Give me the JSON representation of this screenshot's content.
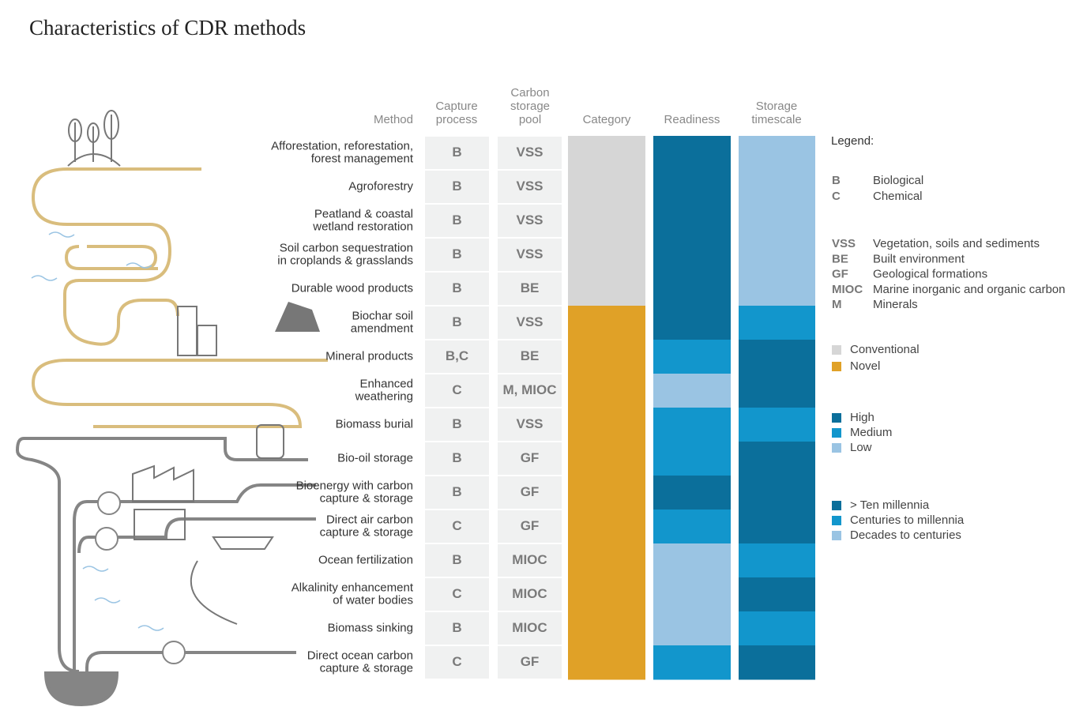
{
  "header": {
    "title": "Characteristics of CDR methods"
  },
  "columns": {
    "method": [
      "Method"
    ],
    "capture": [
      "Capture",
      "process"
    ],
    "pool": [
      "Carbon",
      "storage",
      "pool"
    ],
    "category": [
      "Category"
    ],
    "readiness": [
      "Readiness"
    ],
    "storage": [
      "Storage",
      "timescale"
    ]
  },
  "rows": [
    {
      "method": [
        "Afforestation, reforestation,",
        "forest management"
      ],
      "capture": "B",
      "pool": "VSS",
      "category": 0,
      "readiness": 0,
      "storage": 2
    },
    {
      "method": [
        "Agroforestry"
      ],
      "capture": "B",
      "pool": "VSS",
      "category": 0,
      "readiness": 0,
      "storage": 2
    },
    {
      "method": [
        "Peatland & coastal",
        "wetland restoration"
      ],
      "capture": "B",
      "pool": "VSS",
      "category": 0,
      "readiness": 0,
      "storage": 2
    },
    {
      "method": [
        "Soil carbon sequestration",
        "in croplands & grasslands"
      ],
      "capture": "B",
      "pool": "VSS",
      "category": 0,
      "readiness": 0,
      "storage": 2
    },
    {
      "method": [
        "Durable wood products"
      ],
      "capture": "B",
      "pool": "BE",
      "category": 0,
      "readiness": 0,
      "storage": 2
    },
    {
      "method": [
        "Biochar soil",
        "amendment"
      ],
      "capture": "B",
      "pool": "VSS",
      "category": 1,
      "readiness": 0,
      "storage": 1
    },
    {
      "method": [
        "Mineral products"
      ],
      "capture": "B,C",
      "pool": "BE",
      "category": 1,
      "readiness": 1,
      "storage": 0
    },
    {
      "method": [
        "Enhanced",
        "weathering"
      ],
      "capture": "C",
      "pool": "M, MIOC",
      "category": 1,
      "readiness": 2,
      "storage": 0
    },
    {
      "method": [
        "Biomass burial"
      ],
      "capture": "B",
      "pool": "VSS",
      "category": 1,
      "readiness": 1,
      "storage": 1
    },
    {
      "method": [
        "Bio-oil storage"
      ],
      "capture": "B",
      "pool": "GF",
      "category": 1,
      "readiness": 1,
      "storage": 0
    },
    {
      "method": [
        "Bioenergy with carbon",
        "capture & storage"
      ],
      "capture": "B",
      "pool": "GF",
      "category": 1,
      "readiness": 0,
      "storage": 0
    },
    {
      "method": [
        "Direct air carbon",
        "capture & storage"
      ],
      "capture": "C",
      "pool": "GF",
      "category": 1,
      "readiness": 1,
      "storage": 0
    },
    {
      "method": [
        "Ocean fertilization"
      ],
      "capture": "B",
      "pool": "MIOC",
      "category": 1,
      "readiness": 2,
      "storage": 1
    },
    {
      "method": [
        "Alkalinity enhancement",
        "of water bodies"
      ],
      "capture": "C",
      "pool": "MIOC",
      "category": 1,
      "readiness": 2,
      "storage": 0
    },
    {
      "method": [
        "Biomass sinking"
      ],
      "capture": "B",
      "pool": "MIOC",
      "category": 1,
      "readiness": 2,
      "storage": 1
    },
    {
      "method": [
        "Direct ocean carbon",
        "capture & storage"
      ],
      "capture": "C",
      "pool": "GF",
      "category": 1,
      "readiness": 1,
      "storage": 0
    }
  ],
  "legend": {
    "title": "Legend:",
    "capture": [
      {
        "code": "B",
        "label": "Biological"
      },
      {
        "code": "C",
        "label": "Chemical"
      }
    ],
    "pool": [
      {
        "code": "VSS",
        "label": "Vegetation, soils and sediments"
      },
      {
        "code": "BE",
        "label": "Built environment"
      },
      {
        "code": "GF",
        "label": "Geological formations"
      },
      {
        "code": "MIOC",
        "label": "Marine inorganic and organic carbon"
      },
      {
        "code": "M",
        "label": "Minerals"
      }
    ],
    "category": [
      {
        "label": "Conventional",
        "color": "#d6d6d6"
      },
      {
        "label": "Novel",
        "color": "#e0a127"
      }
    ],
    "readiness": [
      {
        "label": "High",
        "color": "#0b6f9b"
      },
      {
        "label": "Medium",
        "color": "#1296cc"
      },
      {
        "label": "Low",
        "color": "#9ac4e3"
      }
    ],
    "storage": [
      {
        "label": "> Ten millennia",
        "color": "#0b6f9b"
      },
      {
        "label": "Centuries to millennia",
        "color": "#1296cc"
      },
      {
        "label": "Decades to centuries",
        "color": "#9ac4e3"
      }
    ]
  }
}
